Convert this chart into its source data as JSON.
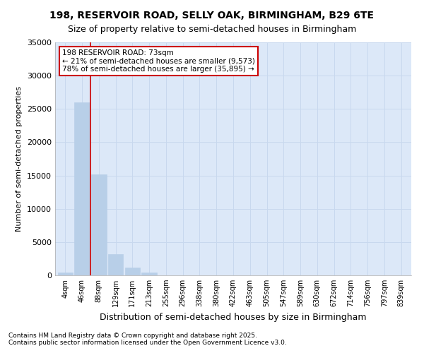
{
  "title_line1": "198, RESERVOIR ROAD, SELLY OAK, BIRMINGHAM, B29 6TE",
  "title_line2": "Size of property relative to semi-detached houses in Birmingham",
  "xlabel": "Distribution of semi-detached houses by size in Birmingham",
  "ylabel": "Number of semi-detached properties",
  "categories": [
    "4sqm",
    "46sqm",
    "88sqm",
    "129sqm",
    "171sqm",
    "213sqm",
    "255sqm",
    "296sqm",
    "338sqm",
    "380sqm",
    "422sqm",
    "463sqm",
    "505sqm",
    "547sqm",
    "589sqm",
    "630sqm",
    "672sqm",
    "714sqm",
    "756sqm",
    "797sqm",
    "839sqm"
  ],
  "values": [
    400,
    26000,
    15200,
    3200,
    1200,
    450,
    50,
    0,
    0,
    0,
    0,
    0,
    0,
    0,
    0,
    0,
    0,
    0,
    0,
    0,
    0
  ],
  "bar_color": "#b8cfe8",
  "bar_edge_color": "#b8cfe8",
  "annotation_text_line1": "198 RESERVOIR ROAD: 73sqm",
  "annotation_text_line2": "← 21% of semi-detached houses are smaller (9,573)",
  "annotation_text_line3": "78% of semi-detached houses are larger (35,895) →",
  "ylim": [
    0,
    35000
  ],
  "yticks": [
    0,
    5000,
    10000,
    15000,
    20000,
    25000,
    30000,
    35000
  ],
  "grid_color": "#c8d8ee",
  "plot_bg_color": "#dce8f8",
  "fig_bg_color": "#ffffff",
  "red_line_color": "#cc0000",
  "annotation_box_facecolor": "#ffffff",
  "annotation_border_color": "#cc0000",
  "footer_line1": "Contains HM Land Registry data © Crown copyright and database right 2025.",
  "footer_line2": "Contains public sector information licensed under the Open Government Licence v3.0.",
  "title_fontsize": 10,
  "subtitle_fontsize": 9,
  "ylabel_fontsize": 8,
  "xlabel_fontsize": 9,
  "ytick_fontsize": 8,
  "xtick_fontsize": 7,
  "annotation_fontsize": 7.5,
  "footer_fontsize": 6.5,
  "red_line_x": 1.5
}
